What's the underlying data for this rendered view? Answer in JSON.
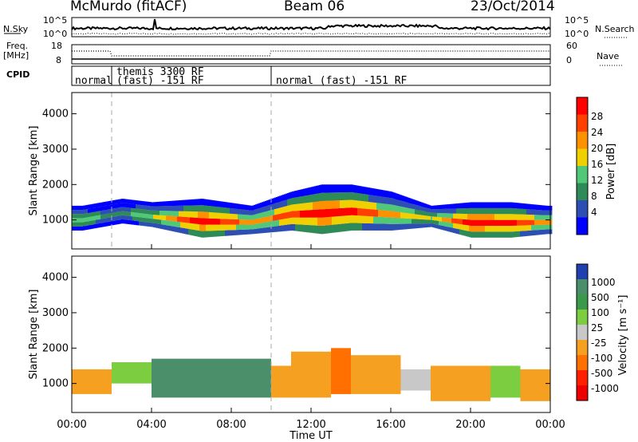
{
  "header": {
    "station": "McMurdo (fitACF)",
    "beam": "Beam 06",
    "date": "23/Oct/2014"
  },
  "noise_panel": {
    "left_label": "N.Sky",
    "right_label": "N.Search",
    "left_ticks": [
      "10^5",
      "10^0"
    ],
    "right_ticks": [
      "10^5",
      "10^0"
    ]
  },
  "freq_panel": {
    "left_label": "Freq.",
    "left_unit": "[MHz]",
    "left_ticks": [
      "18",
      "8"
    ],
    "right_label": "Nave",
    "right_ticks": [
      "60",
      "0"
    ]
  },
  "cpid": {
    "label": "CPID",
    "segments": [
      {
        "start_h": 0,
        "end_h": 2,
        "text": "normal"
      },
      {
        "start_h": 2,
        "end_h": 10,
        "text": "themis 3300 RF (fast) -151 RF"
      },
      {
        "start_h": 10,
        "end_h": 24,
        "text": "normal (fast) -151 RF"
      }
    ],
    "texts": {
      "s1": "normal",
      "s2a": "themis 3300 RF",
      "s2b": "(fast) -151 RF",
      "s3": "normal (fast) -151 RF"
    }
  },
  "power_panel": {
    "ylabel": "Slant Range [km]",
    "colorbar_label": "Power [dB]",
    "colorbar_ticks": [
      "28",
      "24",
      "20",
      "16",
      "12",
      "8",
      "4"
    ],
    "colors": [
      "#0000ff",
      "#2d4fb3",
      "#2e8b57",
      "#50c878",
      "#f0d000",
      "#ff9000",
      "#ff4000",
      "#ff0000"
    ]
  },
  "velocity_panel": {
    "ylabel": "Slant Range [km]",
    "colorbar_label": "Velocity [m s⁻¹]",
    "colorbar_ticks": [
      "1000",
      "500",
      "100",
      "25",
      "-25",
      "-100",
      "-500",
      "-1000"
    ],
    "colors": [
      "#2040b0",
      "#4a8f6a",
      "#3a9a4a",
      "#7ccd40",
      "#c8c8c8",
      "#f5a020",
      "#ff7000",
      "#ff2000",
      "#ee0000"
    ]
  },
  "chart_data": {
    "type": "heatmap",
    "x_axis": {
      "label": "Time UT",
      "ticks": [
        "00:00",
        "04:00",
        "08:00",
        "12:00",
        "16:00",
        "20:00",
        "00:00"
      ],
      "range_h": [
        0,
        24
      ]
    },
    "y_axis": {
      "label": "Slant Range [km]",
      "ticks": [
        "1000",
        "2000",
        "3000",
        "4000"
      ],
      "range": [
        180,
        4600
      ]
    },
    "power": {
      "unit": "dB",
      "scale": [
        4,
        28
      ],
      "main_band": [
        {
          "t_h": 0.5,
          "min_km": 700,
          "max_km": 1400,
          "peak_db": 14
        },
        {
          "t_h": 2.5,
          "min_km": 900,
          "max_km": 1600,
          "peak_db": 12
        },
        {
          "t_h": 4.0,
          "min_km": 800,
          "max_km": 1500,
          "peak_db": 16
        },
        {
          "t_h": 6.5,
          "min_km": 500,
          "max_km": 1600,
          "peak_db": 28
        },
        {
          "t_h": 9.0,
          "min_km": 600,
          "max_km": 1400,
          "peak_db": 20
        },
        {
          "t_h": 11.0,
          "min_km": 700,
          "max_km": 1800,
          "peak_db": 24
        },
        {
          "t_h": 12.5,
          "min_km": 600,
          "max_km": 2000,
          "peak_db": 28
        },
        {
          "t_h": 14.0,
          "min_km": 700,
          "max_km": 2000,
          "peak_db": 26
        },
        {
          "t_h": 16.0,
          "min_km": 700,
          "max_km": 1800,
          "peak_db": 20
        },
        {
          "t_h": 18.0,
          "min_km": 800,
          "max_km": 1400,
          "peak_db": 16
        },
        {
          "t_h": 20.0,
          "min_km": 500,
          "max_km": 1500,
          "peak_db": 28
        },
        {
          "t_h": 22.0,
          "min_km": 500,
          "max_km": 1500,
          "peak_db": 26
        },
        {
          "t_h": 23.8,
          "min_km": 600,
          "max_km": 1400,
          "peak_db": 20
        }
      ]
    },
    "velocity": {
      "unit": "m s-1",
      "scale": [
        -1000,
        1000
      ],
      "segments": [
        {
          "t0": 0.0,
          "t1": 2.0,
          "min_km": 700,
          "max_km": 1400,
          "v": -100
        },
        {
          "t0": 2.0,
          "t1": 4.0,
          "min_km": 1000,
          "max_km": 1600,
          "v": 25
        },
        {
          "t0": 4.0,
          "t1": 10.0,
          "min_km": 600,
          "max_km": 1700,
          "v": 500
        },
        {
          "t0": 10.0,
          "t1": 11.0,
          "min_km": 600,
          "max_km": 1500,
          "v": -100
        },
        {
          "t0": 11.0,
          "t1": 13.0,
          "min_km": 600,
          "max_km": 1900,
          "v": -100
        },
        {
          "t0": 13.0,
          "t1": 14.0,
          "min_km": 700,
          "max_km": 2000,
          "v": -500
        },
        {
          "t0": 14.0,
          "t1": 16.5,
          "min_km": 700,
          "max_km": 1800,
          "v": -100
        },
        {
          "t0": 16.5,
          "t1": 18.0,
          "min_km": 800,
          "max_km": 1400,
          "v": -25
        },
        {
          "t0": 18.0,
          "t1": 21.0,
          "min_km": 500,
          "max_km": 1500,
          "v": -100
        },
        {
          "t0": 21.0,
          "t1": 22.5,
          "min_km": 600,
          "max_km": 1500,
          "v": 25
        },
        {
          "t0": 22.5,
          "t1": 24.0,
          "min_km": 500,
          "max_km": 1400,
          "v": -100
        }
      ]
    },
    "mode_changes_h": [
      2.0,
      10.0
    ]
  }
}
